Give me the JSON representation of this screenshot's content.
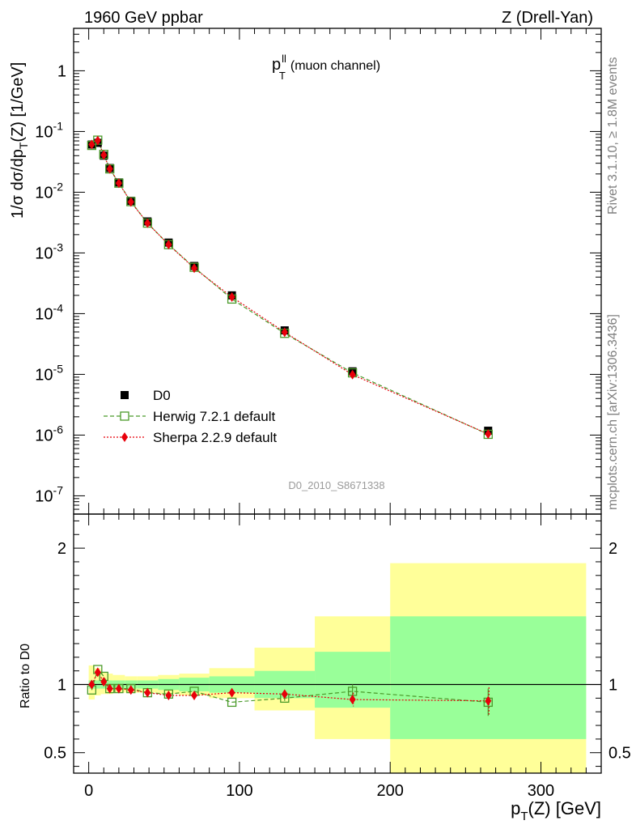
{
  "header": {
    "left": "1960 GeV ppbar",
    "right": "Z (Drell-Yan)"
  },
  "plot_title": {
    "main": "p",
    "sup": "ll",
    "sub": "T",
    "suffix": "(muon channel)"
  },
  "side_labels": {
    "rivet": "Rivet 3.1.10, ≥ 1.8M events",
    "mcplots": "mcplots.cern.ch [arXiv:1306.3436]"
  },
  "analysis_id": "D0_2010_S8671338",
  "colors": {
    "data": "#000000",
    "herwig": "#4a9a2a",
    "sherpa": "#e8000b",
    "band_inner": "#99ff99",
    "band_outer": "#ffff99"
  },
  "chart_data": [
    {
      "type": "scatter",
      "ylabel": "1/σ dσ/dp_T(Z) [1/GeV]",
      "ylabel_parts": {
        "a": "1/σ  dσ/dp",
        "sub": "T",
        "b": "(Z) [1/GeV]"
      },
      "yscale": "log",
      "ylim": [
        5e-08,
        5
      ],
      "xlim": [
        -10,
        340
      ],
      "y_tick_labels": [
        "10^-7",
        "10^-6",
        "10^-5",
        "10^-4",
        "10^-3",
        "10^-2",
        "10^-1",
        "1"
      ],
      "legend_position": "lower-left",
      "legend": [
        "D0",
        "Herwig 7.2.1 default",
        "Sherpa 2.2.9 default"
      ],
      "x": [
        2,
        6,
        10,
        14,
        20,
        28,
        39,
        53,
        70,
        95,
        130,
        175,
        265
      ],
      "series": [
        {
          "name": "D0",
          "values": [
            0.061,
            0.065,
            0.04,
            0.025,
            0.0145,
            0.0072,
            0.0033,
            0.00148,
            0.00061,
            0.0002,
            5.3e-05,
            1.12e-05,
            1.18e-06
          ]
        },
        {
          "name": "Herwig 7.2.1 default",
          "values": [
            0.059,
            0.072,
            0.042,
            0.0242,
            0.0141,
            0.007,
            0.0031,
            0.00137,
            0.00058,
            0.000174,
            4.74e-05,
            1.06e-05,
            1.03e-06
          ]
        },
        {
          "name": "Sherpa 2.2.9 default",
          "values": [
            0.061,
            0.071,
            0.041,
            0.0242,
            0.0141,
            0.0069,
            0.0031,
            0.00137,
            0.00056,
            0.000188,
            4.95e-05,
            9.9e-06,
            1.04e-06
          ]
        }
      ]
    },
    {
      "type": "scatter",
      "ylabel": "Ratio to D0",
      "xlabel": "p_T(Z) [GeV]",
      "xlabel_parts": {
        "a": "p",
        "sub": "T",
        "b": "(Z) [GeV]"
      },
      "ylim": [
        0.35,
        2.25
      ],
      "xlim": [
        -10,
        340
      ],
      "y_ticks": [
        0.5,
        1,
        2
      ],
      "y_tick_labels": [
        "0.5",
        "1",
        "2"
      ],
      "x_ticks": [
        0,
        100,
        200,
        300
      ],
      "x_tick_labels": [
        "0",
        "100",
        "200",
        "300"
      ],
      "reference_line": 1,
      "bins": [
        0,
        4,
        8,
        12,
        16,
        24,
        32,
        46,
        60,
        80,
        110,
        150,
        200,
        330
      ],
      "band_inner": [
        [
          0.97,
          1.03
        ],
        [
          0.97,
          1.03
        ],
        [
          0.97,
          1.03
        ],
        [
          0.97,
          1.03
        ],
        [
          0.97,
          1.03
        ],
        [
          0.97,
          1.03
        ],
        [
          0.97,
          1.03
        ],
        [
          0.96,
          1.04
        ],
        [
          0.95,
          1.05
        ],
        [
          0.94,
          1.06
        ],
        [
          0.9,
          1.1
        ],
        [
          0.83,
          1.24
        ],
        [
          0.6,
          1.5
        ]
      ],
      "band_outer": [
        [
          0.89,
          1.14
        ],
        [
          0.92,
          1.12
        ],
        [
          0.93,
          1.09
        ],
        [
          0.93,
          1.08
        ],
        [
          0.94,
          1.07
        ],
        [
          0.94,
          1.06
        ],
        [
          0.94,
          1.06
        ],
        [
          0.93,
          1.07
        ],
        [
          0.92,
          1.08
        ],
        [
          0.9,
          1.12
        ],
        [
          0.81,
          1.27
        ],
        [
          0.6,
          1.5
        ],
        [
          0.33,
          1.89
        ]
      ],
      "x": [
        2,
        6,
        10,
        14,
        20,
        28,
        39,
        53,
        70,
        95,
        130,
        175,
        265
      ],
      "series": [
        {
          "name": "Herwig 7.2.1 default",
          "values": [
            0.96,
            1.11,
            1.06,
            0.97,
            0.97,
            0.97,
            0.94,
            0.93,
            0.95,
            0.87,
            0.9,
            0.95,
            0.87
          ],
          "errors": [
            0,
            0,
            0,
            0,
            0,
            0,
            0,
            0,
            0,
            0,
            0.02,
            0.05,
            0.1
          ]
        },
        {
          "name": "Sherpa 2.2.9 default",
          "values": [
            1.0,
            1.09,
            1.02,
            0.97,
            0.97,
            0.96,
            0.94,
            0.92,
            0.92,
            0.94,
            0.93,
            0.89,
            0.88
          ],
          "errors": [
            0,
            0,
            0,
            0,
            0,
            0,
            0,
            0,
            0,
            0,
            0.02,
            0.05,
            0.1
          ]
        }
      ]
    }
  ]
}
